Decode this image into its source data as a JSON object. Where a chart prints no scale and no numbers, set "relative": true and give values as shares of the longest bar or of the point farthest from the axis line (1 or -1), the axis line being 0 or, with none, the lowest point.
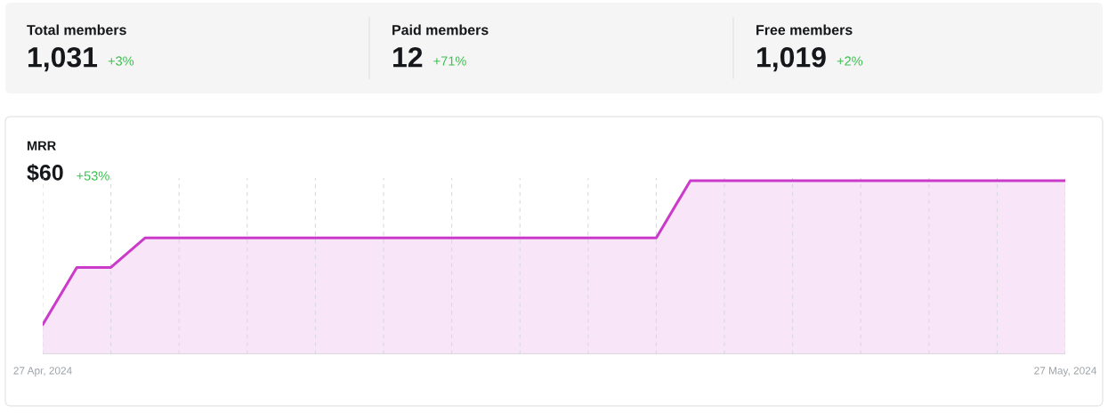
{
  "chart_data": [
    {
      "type": "other",
      "annotations": [
        "Total members",
        "1,031",
        "+3%",
        "Paid members",
        "12",
        "+71%",
        "Free members",
        "1,019",
        "+2%"
      ]
    },
    {
      "type": "area",
      "title": "MRR",
      "subtitle": "$60",
      "annotations": [
        "+53%"
      ],
      "relative": true,
      "grid": "x",
      "x": [
        "2024-04-27",
        "2024-04-28",
        "2024-04-29",
        "2024-04-30",
        "2024-05-01",
        "2024-05-02",
        "2024-05-03",
        "2024-05-04",
        "2024-05-05",
        "2024-05-06",
        "2024-05-07",
        "2024-05-08",
        "2024-05-09",
        "2024-05-10",
        "2024-05-11",
        "2024-05-12",
        "2024-05-13",
        "2024-05-14",
        "2024-05-15",
        "2024-05-16",
        "2024-05-17",
        "2024-05-18",
        "2024-05-19",
        "2024-05-20",
        "2024-05-21",
        "2024-05-22",
        "2024-05-23",
        "2024-05-24",
        "2024-05-25",
        "2024-05-26",
        "2024-05-27"
      ],
      "xlim": [
        "2024-04-27",
        "2024-05-27"
      ],
      "xticks": [
        {
          "value": "2024-04-27",
          "label": "27 Apr, 2024"
        },
        {
          "value": "2024-04-29",
          "label": null
        },
        {
          "value": "2024-05-01",
          "label": null
        },
        {
          "value": "2024-05-03",
          "label": null
        },
        {
          "value": "2024-05-05",
          "label": null
        },
        {
          "value": "2024-05-07",
          "label": null
        },
        {
          "value": "2024-05-09",
          "label": null
        },
        {
          "value": "2024-05-11",
          "label": null
        },
        {
          "value": "2024-05-13",
          "label": null
        },
        {
          "value": "2024-05-15",
          "label": null
        },
        {
          "value": "2024-05-17",
          "label": null
        },
        {
          "value": "2024-05-19",
          "label": null
        },
        {
          "value": "2024-05-21",
          "label": null
        },
        {
          "value": "2024-05-23",
          "label": null
        },
        {
          "value": "2024-05-25",
          "label": null
        },
        {
          "value": "2024-05-27",
          "label": "27 May, 2024"
        }
      ],
      "series": [
        {
          "color": "#c93bc8",
          "values": [
            0.17,
            0.5,
            0.5,
            0.67,
            0.67,
            0.67,
            0.67,
            0.67,
            0.67,
            0.67,
            0.67,
            0.67,
            0.67,
            0.67,
            0.67,
            0.67,
            0.67,
            0.67,
            0.67,
            1,
            1,
            1,
            1,
            1,
            1,
            1,
            1,
            1,
            1,
            1,
            1
          ]
        }
      ]
    }
  ]
}
